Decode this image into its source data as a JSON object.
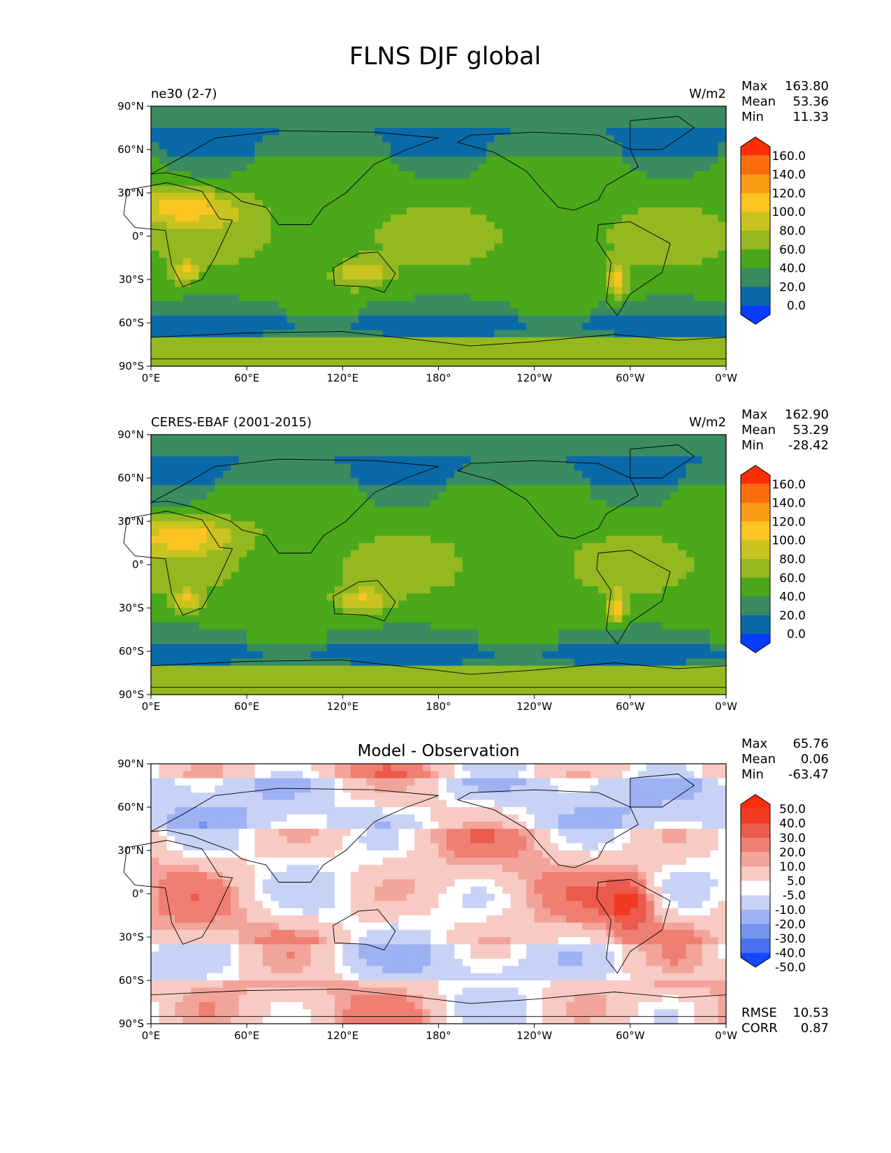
{
  "figure": {
    "title": "FLNS DJF global"
  },
  "colors": {
    "abs_levels": [
      "#0a3cff",
      "#0a6aa8",
      "#3a8c60",
      "#4aa81a",
      "#93b820",
      "#c8c31e",
      "#fbc421",
      "#fb9b15",
      "#fb6c0d",
      "#fb2e05"
    ],
    "diff_levels": [
      "#1448ff",
      "#4a72f0",
      "#7594f0",
      "#9eb1f2",
      "#c7d2f6",
      "#ffffff",
      "#f8cac4",
      "#f3a49a",
      "#ef7f72",
      "#ec5a4b",
      "#f23a22",
      "#fd2e0a"
    ],
    "coastline": "#000000"
  },
  "chart_data": [
    {
      "type": "heatmap",
      "title": "ne30 (2-7)",
      "units": "W/m2",
      "x_ticks": [
        "0°E",
        "60°E",
        "120°E",
        "180°",
        "120°W",
        "60°W",
        "0°W"
      ],
      "y_ticks": [
        "90°N",
        "60°N",
        "30°N",
        "0°",
        "30°S",
        "60°S",
        "90°S"
      ],
      "xlim": [
        0,
        360
      ],
      "ylim": [
        -90,
        90
      ],
      "stats": {
        "max_label": "Max",
        "max": "163.80",
        "mean_label": "Mean",
        "mean": "53.36",
        "min_label": "Min",
        "min": "11.33"
      },
      "colorbar": {
        "levels": [
          0,
          20,
          40,
          60,
          80,
          100,
          120,
          140,
          160
        ],
        "labels": [
          "160.0",
          "140.0",
          "120.0",
          "100.0",
          "80.0",
          "60.0",
          "40.0",
          "20.0",
          "0.0"
        ],
        "extend": "both"
      }
    },
    {
      "type": "heatmap",
      "title": "CERES-EBAF (2001-2015)",
      "units": "W/m2",
      "x_ticks": [
        "0°E",
        "60°E",
        "120°E",
        "180°",
        "120°W",
        "60°W",
        "0°W"
      ],
      "y_ticks": [
        "90°N",
        "60°N",
        "30°N",
        "0°",
        "30°S",
        "60°S",
        "90°S"
      ],
      "xlim": [
        0,
        360
      ],
      "ylim": [
        -90,
        90
      ],
      "stats": {
        "max_label": "Max",
        "max": "162.90",
        "mean_label": "Mean",
        "mean": "53.29",
        "min_label": "Min",
        "min": "-28.42"
      },
      "colorbar": {
        "levels": [
          0,
          20,
          40,
          60,
          80,
          100,
          120,
          140,
          160
        ],
        "labels": [
          "160.0",
          "140.0",
          "120.0",
          "100.0",
          "80.0",
          "60.0",
          "40.0",
          "20.0",
          "0.0"
        ],
        "extend": "both"
      }
    },
    {
      "type": "heatmap",
      "title": "Model - Observation",
      "units": "",
      "x_ticks": [
        "0°E",
        "60°E",
        "120°E",
        "180°",
        "120°W",
        "60°W",
        "0°W"
      ],
      "y_ticks": [
        "90°N",
        "60°N",
        "30°N",
        "0°",
        "30°S",
        "60°S",
        "90°S"
      ],
      "xlim": [
        0,
        360
      ],
      "ylim": [
        -90,
        90
      ],
      "stats": {
        "max_label": "Max",
        "max": "65.76",
        "mean_label": "Mean",
        "mean": "0.06",
        "min_label": "Min",
        "min": "-63.47"
      },
      "colorbar": {
        "levels": [
          -50,
          -40,
          -30,
          -20,
          -10,
          -5,
          5,
          10,
          20,
          30,
          40,
          50
        ],
        "labels": [
          "50.0",
          "40.0",
          "30.0",
          "20.0",
          "10.0",
          "5.0",
          "-5.0",
          "-10.0",
          "-20.0",
          "-30.0",
          "-40.0",
          "-50.0"
        ],
        "extend": "both"
      },
      "metrics": {
        "rmse_label": "RMSE",
        "rmse": "10.53",
        "corr_label": "CORR",
        "corr": "0.87"
      }
    }
  ]
}
